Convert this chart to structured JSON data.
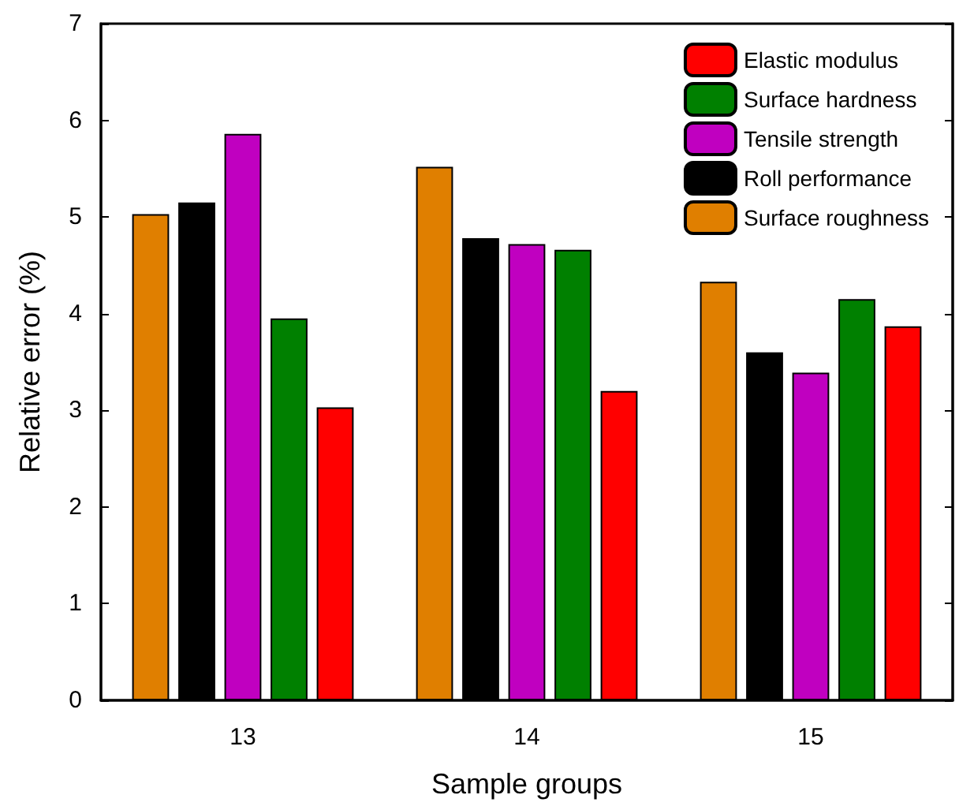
{
  "chart_data": {
    "type": "bar",
    "xlabel": "Sample groups",
    "ylabel": "Relative error (%)",
    "categories": [
      "13",
      "14",
      "15"
    ],
    "series": [
      {
        "name": "Surface roughness",
        "color": "#e07f00",
        "values": [
          5.03,
          5.52,
          4.33
        ]
      },
      {
        "name": "Roll performance",
        "color": "#000000",
        "values": [
          5.15,
          4.78,
          3.6
        ]
      },
      {
        "name": "Tensile strength",
        "color": "#c000c0",
        "values": [
          5.86,
          4.72,
          3.39
        ]
      },
      {
        "name": "Surface hardness",
        "color": "#008000",
        "values": [
          3.95,
          4.66,
          4.15
        ]
      },
      {
        "name": "Elastic modulus",
        "color": "#ff0000",
        "values": [
          3.03,
          3.2,
          3.87
        ]
      }
    ],
    "ylim": [
      0,
      7
    ],
    "yticks": [
      0,
      1,
      2,
      3,
      4,
      5,
      6,
      7
    ],
    "grid": false,
    "legend": "top right"
  }
}
